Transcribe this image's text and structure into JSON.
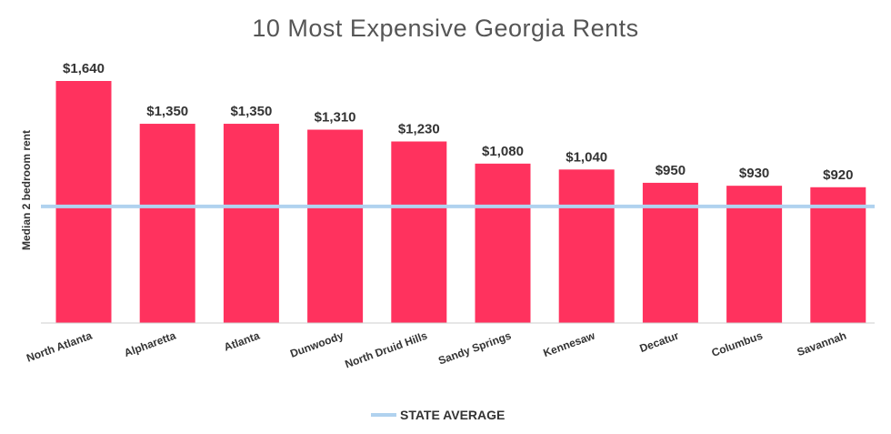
{
  "chart_data": {
    "type": "bar",
    "title": "10 Most Expensive Georgia Rents",
    "xlabel": "",
    "ylabel": "Median 2 bedroom rent",
    "categories": [
      "North Atlanta",
      "Alpharetta",
      "Atlanta",
      "Dunwoody",
      "North Druid Hills",
      "Sandy Springs",
      "Kennesaw",
      "Decatur",
      "Columbus",
      "Savannah"
    ],
    "values": [
      1640,
      1350,
      1350,
      1310,
      1230,
      1080,
      1040,
      950,
      930,
      920
    ],
    "value_labels": [
      "$1,640",
      "$1,350",
      "$1,350",
      "$1,310",
      "$1,230",
      "$1,080",
      "$1,040",
      "$950",
      "$930",
      "$920"
    ],
    "reference_line": {
      "name": "STATE AVERAGE",
      "value": 790
    },
    "ylim": [
      0,
      1640
    ],
    "grid": false,
    "legend_position": "bottom-center",
    "colors": {
      "bar": "#ff325e",
      "reference": "#b0d2ef",
      "axis": "#cccccc",
      "text": "#333333",
      "title": "#555555"
    }
  }
}
